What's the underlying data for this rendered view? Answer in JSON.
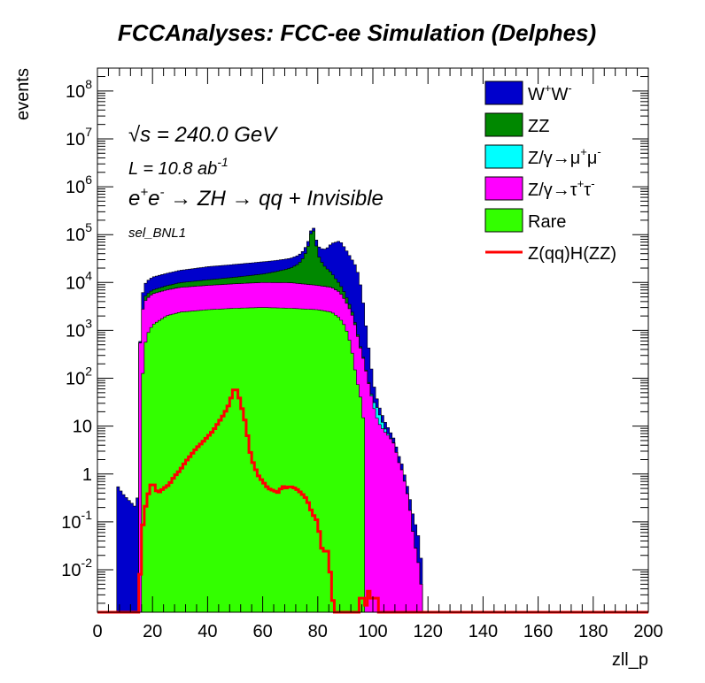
{
  "chart_data": {
    "type": "area",
    "title": "FCCAnalyses: FCC-ee Simulation (Delphes)",
    "xlabel": "zll_p",
    "ylabel": "events",
    "xlim": [
      0,
      200
    ],
    "ylim": [
      0.0013,
      300000000
    ],
    "log_y": true,
    "bin_width": 1,
    "x_ticks": [
      "0",
      "20",
      "40",
      "60",
      "80",
      "100",
      "120",
      "140",
      "160",
      "180",
      "200"
    ],
    "y_ticks": [
      {
        "base": "10",
        "exp": "-2",
        "value": 0.01
      },
      {
        "base": "10",
        "exp": "-1",
        "value": 0.1
      },
      {
        "base": "1",
        "exp": "",
        "value": 1
      },
      {
        "base": "10",
        "exp": "",
        "value": 10
      },
      {
        "base": "10",
        "exp": "2",
        "value": 100
      },
      {
        "base": "10",
        "exp": "3",
        "value": 1000
      },
      {
        "base": "10",
        "exp": "4",
        "value": 10000
      },
      {
        "base": "10",
        "exp": "5",
        "value": 100000
      },
      {
        "base": "10",
        "exp": "6",
        "value": 1000000
      },
      {
        "base": "10",
        "exp": "7",
        "value": 10000000
      },
      {
        "base": "10",
        "exp": "8",
        "value": 100000000
      }
    ],
    "annotations": {
      "sqrt_s": {
        "symbol": "√s",
        "text": " = 240.0 GeV"
      },
      "lumi": {
        "text": "L = 10.8 ab",
        "sup": "-1"
      },
      "process": {
        "e": "e",
        "plus": "+",
        "e2": "e",
        "minus": "-",
        "rest": " → ZH → qq + Invisible"
      },
      "selection": "sel_BNL1"
    },
    "legend_position": "top-right",
    "legend": [
      {
        "key": "ww",
        "type": "fill",
        "color": "#0000cc",
        "parts": [
          {
            "t": "W"
          },
          {
            "t": "+",
            "sup": true
          },
          {
            "t": "W"
          },
          {
            "t": "-",
            "sup": true
          }
        ]
      },
      {
        "key": "zz",
        "type": "fill",
        "color": "#008800",
        "parts": [
          {
            "t": "ZZ"
          }
        ]
      },
      {
        "key": "zmumu",
        "type": "fill",
        "color": "#00ffff",
        "parts": [
          {
            "t": "Z/γ→μ"
          },
          {
            "t": "+",
            "sup": true
          },
          {
            "t": "μ"
          },
          {
            "t": "-",
            "sup": true
          }
        ]
      },
      {
        "key": "ztautau",
        "type": "fill",
        "color": "#ff00ff",
        "parts": [
          {
            "t": "Z/γ→τ"
          },
          {
            "t": "+",
            "sup": true
          },
          {
            "t": "τ"
          },
          {
            "t": "-",
            "sup": true
          }
        ]
      },
      {
        "key": "rare",
        "type": "fill",
        "color": "#33ff00",
        "parts": [
          {
            "t": "Rare"
          }
        ]
      },
      {
        "key": "signal",
        "type": "line",
        "color": "#ff0000",
        "parts": [
          {
            "t": "Z(qq)H(ZZ)"
          }
        ]
      }
    ],
    "stack_order": [
      "rare",
      "ztautau",
      "zmumu",
      "zz",
      "ww"
    ],
    "series": [
      {
        "key": "rare",
        "name": "Rare",
        "color": "#33ff00",
        "points": [
          [
            16,
            40
          ],
          [
            17,
            400
          ],
          [
            18,
            800
          ],
          [
            20,
            1300
          ],
          [
            25,
            2000
          ],
          [
            30,
            2400
          ],
          [
            40,
            2700
          ],
          [
            50,
            2900
          ],
          [
            60,
            3000
          ],
          [
            70,
            2900
          ],
          [
            80,
            2700
          ],
          [
            85,
            2400
          ],
          [
            88,
            1800
          ],
          [
            90,
            1200
          ],
          [
            92,
            500
          ],
          [
            94,
            100
          ],
          [
            96,
            30
          ],
          [
            97,
            0
          ]
        ]
      },
      {
        "key": "ztautau",
        "name": "Z/γ→τ+τ-",
        "color": "#ff00ff",
        "points": [
          [
            15,
            150
          ],
          [
            16,
            2000
          ],
          [
            17,
            3500
          ],
          [
            20,
            4500
          ],
          [
            30,
            5500
          ],
          [
            40,
            6000
          ],
          [
            50,
            6500
          ],
          [
            60,
            7000
          ],
          [
            70,
            7000
          ],
          [
            80,
            6000
          ],
          [
            85,
            5500
          ],
          [
            88,
            4500
          ],
          [
            90,
            3000
          ],
          [
            92,
            2000
          ],
          [
            93,
            1500
          ],
          [
            94,
            900
          ],
          [
            95,
            500
          ],
          [
            96,
            300
          ],
          [
            97,
            200
          ],
          [
            98,
            100
          ],
          [
            99,
            60
          ],
          [
            100,
            30
          ],
          [
            101,
            18
          ],
          [
            102,
            12
          ],
          [
            104,
            8
          ],
          [
            106,
            6
          ],
          [
            108,
            4
          ],
          [
            109,
            2
          ],
          [
            110,
            1.5
          ],
          [
            111,
            1
          ],
          [
            112,
            0.5
          ],
          [
            113,
            0.3
          ],
          [
            114,
            0.1
          ],
          [
            115,
            0.04
          ],
          [
            116,
            0.02
          ],
          [
            117,
            0.01
          ],
          [
            118,
            0
          ]
        ]
      },
      {
        "key": "zmumu",
        "name": "Z/γ→μ+μ-",
        "color": "#00ffff",
        "points": [
          [
            96,
            0.003
          ],
          [
            97,
            0.05
          ],
          [
            98,
            0.5
          ],
          [
            99,
            2
          ],
          [
            100,
            5
          ],
          [
            101,
            12
          ],
          [
            102,
            8
          ],
          [
            103,
            5
          ],
          [
            104,
            2
          ],
          [
            105,
            0.8
          ],
          [
            106,
            0.3
          ],
          [
            107,
            0.1
          ],
          [
            108,
            0.02
          ],
          [
            109,
            0
          ]
        ]
      },
      {
        "key": "zz",
        "name": "ZZ",
        "color": "#008800",
        "points": [
          [
            17,
            1000
          ],
          [
            30,
            2000
          ],
          [
            50,
            3500
          ],
          [
            60,
            5000
          ],
          [
            65,
            7000
          ],
          [
            70,
            10000
          ],
          [
            73,
            15000
          ],
          [
            75,
            25000
          ],
          [
            77,
            60000
          ],
          [
            78,
            150000
          ],
          [
            79,
            80000
          ],
          [
            80,
            30000
          ],
          [
            82,
            15000
          ],
          [
            85,
            8000
          ],
          [
            88,
            3000
          ],
          [
            90,
            1500
          ],
          [
            92,
            500
          ],
          [
            94,
            100
          ],
          [
            96,
            20
          ],
          [
            98,
            5
          ],
          [
            100,
            0
          ]
        ]
      },
      {
        "key": "ww",
        "name": "W+W-",
        "color": "#0000cc",
        "points": [
          [
            7,
            0.6
          ],
          [
            9,
            0.4
          ],
          [
            11,
            0.3
          ],
          [
            14,
            0.2
          ],
          [
            15,
            0.5
          ],
          [
            16,
            3000
          ],
          [
            18,
            5000
          ],
          [
            20,
            6000
          ],
          [
            30,
            8000
          ],
          [
            40,
            10000
          ],
          [
            50,
            11000
          ],
          [
            60,
            12000
          ],
          [
            70,
            12000
          ],
          [
            75,
            13000
          ],
          [
            80,
            20000
          ],
          [
            83,
            30000
          ],
          [
            85,
            50000
          ],
          [
            87,
            60000
          ],
          [
            88,
            65000
          ],
          [
            89,
            55000
          ],
          [
            90,
            45000
          ],
          [
            92,
            30000
          ],
          [
            94,
            20000
          ],
          [
            95,
            12000
          ],
          [
            96,
            6000
          ],
          [
            97,
            2000
          ],
          [
            98,
            600
          ],
          [
            99,
            200
          ],
          [
            100,
            60
          ],
          [
            101,
            20
          ],
          [
            102,
            8
          ],
          [
            104,
            4
          ],
          [
            106,
            2
          ],
          [
            108,
            1
          ],
          [
            110,
            0.5
          ],
          [
            112,
            0.2
          ],
          [
            114,
            0.1
          ],
          [
            116,
            0.05
          ],
          [
            118,
            0
          ]
        ]
      },
      {
        "key": "signal",
        "name": "Z(qq)H(ZZ)",
        "color": "#ff0000",
        "points": [
          [
            15,
            0.0013
          ],
          [
            16,
            0.05
          ],
          [
            17,
            0.15
          ],
          [
            18,
            0.3
          ],
          [
            19,
            0.5
          ],
          [
            20,
            0.7
          ],
          [
            21,
            0.5
          ],
          [
            22,
            0.4
          ],
          [
            24,
            0.5
          ],
          [
            26,
            0.6
          ],
          [
            28,
            0.9
          ],
          [
            30,
            1.2
          ],
          [
            32,
            1.8
          ],
          [
            34,
            2.5
          ],
          [
            36,
            3.5
          ],
          [
            38,
            4.5
          ],
          [
            40,
            6
          ],
          [
            42,
            8
          ],
          [
            44,
            12
          ],
          [
            46,
            18
          ],
          [
            48,
            30
          ],
          [
            49,
            50
          ],
          [
            50,
            65
          ],
          [
            51,
            50
          ],
          [
            52,
            30
          ],
          [
            53,
            18
          ],
          [
            54,
            10
          ],
          [
            55,
            4
          ],
          [
            56,
            2
          ],
          [
            57,
            1.5
          ],
          [
            58,
            1
          ],
          [
            60,
            0.7
          ],
          [
            62,
            0.5
          ],
          [
            64,
            0.45
          ],
          [
            66,
            0.4
          ],
          [
            67,
            0.6
          ],
          [
            68,
            0.5
          ],
          [
            70,
            0.55
          ],
          [
            72,
            0.5
          ],
          [
            74,
            0.4
          ],
          [
            76,
            0.3
          ],
          [
            78,
            0.15
          ],
          [
            80,
            0.1
          ],
          [
            81,
            0.04
          ],
          [
            82,
            0.02
          ],
          [
            83,
            0.03
          ],
          [
            84,
            0.02
          ],
          [
            85,
            0.004
          ],
          [
            86,
            0.0013
          ],
          [
            95,
            0.0013
          ],
          [
            96,
            0.005
          ],
          [
            97,
            0.0013
          ],
          [
            99,
            0.005
          ],
          [
            100,
            0.0013
          ],
          [
            101,
            0.005
          ],
          [
            102,
            0.0013
          ]
        ]
      }
    ]
  }
}
